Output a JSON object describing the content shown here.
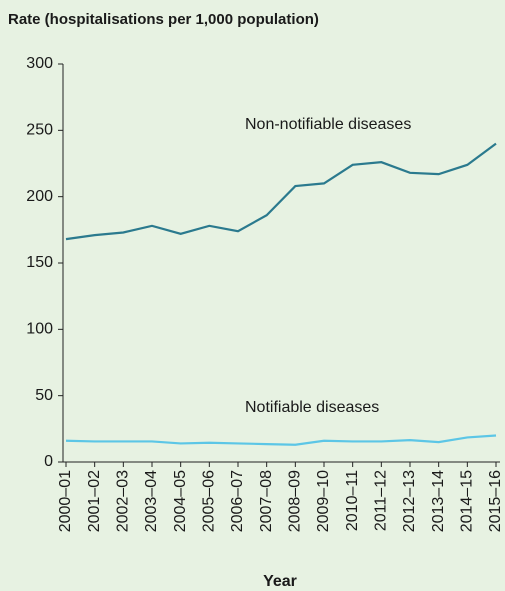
{
  "chart_data": {
    "type": "line",
    "title": "Rate (hospitalisations per 1,000 population)",
    "x_label": "Year",
    "categories": [
      "2000–01",
      "2001–02",
      "2002–03",
      "2003–04",
      "2004–05",
      "2005–06",
      "2006–07",
      "2007–08",
      "2008–09",
      "2009–10",
      "2010–11",
      "2011–12",
      "2012–13",
      "2013–14",
      "2014–15",
      "2015–16"
    ],
    "series": [
      {
        "name": "Non-notifiable diseases",
        "color": "#2b7a8e",
        "values": [
          168,
          171,
          173,
          178,
          172,
          178,
          174,
          186,
          208,
          210,
          224,
          226,
          218,
          217,
          224,
          240
        ]
      },
      {
        "name": "Notifiable diseases",
        "color": "#5cc6e6",
        "values": [
          16,
          15.5,
          15.5,
          15.5,
          14,
          14.5,
          14,
          13.5,
          13,
          16,
          15.5,
          15.5,
          16.5,
          15,
          18.5,
          20
        ]
      }
    ],
    "ylim": [
      0,
      300
    ],
    "yticks": [
      0,
      50,
      100,
      150,
      200,
      250,
      300
    ]
  }
}
